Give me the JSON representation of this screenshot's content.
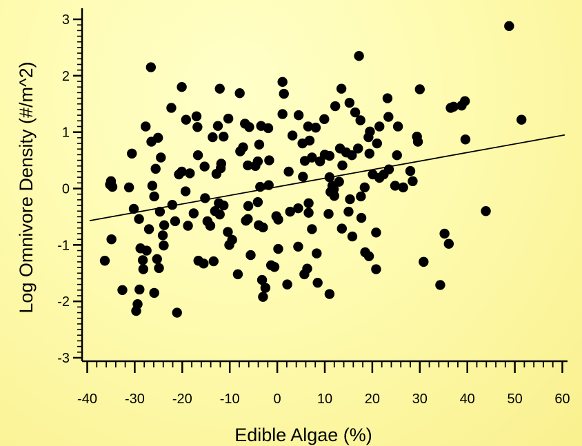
{
  "chart_data": {
    "type": "scatter",
    "title": "",
    "xlabel": "Edible Algae (%)",
    "ylabel": "Log Omnivore Density (#/m^2)",
    "xlim": [
      -41,
      61
    ],
    "ylim": [
      -3.1,
      3.15
    ],
    "x_ticks": [
      -40,
      -30,
      -20,
      -10,
      0,
      10,
      20,
      30,
      40,
      50,
      60
    ],
    "y_ticks": [
      -3,
      -2,
      -1,
      0,
      1,
      2,
      3
    ],
    "x_tick_labels": [
      "-40",
      "-30",
      "-20",
      "-10",
      "0",
      "10",
      "20",
      "30",
      "40",
      "50",
      "60"
    ],
    "y_tick_labels": [
      "-3",
      "-2",
      "-1",
      "0",
      "1",
      "2",
      "3"
    ],
    "grid": false,
    "legend": "none",
    "marker_color": "#000000",
    "line_color": "#000000",
    "trend_line": {
      "x": [
        -39.5,
        60.5
      ],
      "y": [
        -0.57,
        0.95
      ]
    },
    "points": [
      [
        48.8,
        2.88
      ],
      [
        51.4,
        1.22
      ],
      [
        43.9,
        -0.4
      ],
      [
        39.5,
        1.55
      ],
      [
        39.6,
        0.87
      ],
      [
        38.8,
        1.47
      ],
      [
        37.1,
        1.45
      ],
      [
        36.5,
        1.43
      ],
      [
        36.1,
        -0.98
      ],
      [
        35.2,
        -0.8
      ],
      [
        34.3,
        -1.71
      ],
      [
        30.8,
        -1.3
      ],
      [
        30.0,
        1.76
      ],
      [
        29.6,
        0.83
      ],
      [
        29.4,
        0.92
      ],
      [
        28.5,
        0.13
      ],
      [
        28.0,
        0.31
      ],
      [
        26.5,
        0.02
      ],
      [
        25.2,
        0.59
      ],
      [
        24.8,
        0.05
      ],
      [
        25.4,
        1.1
      ],
      [
        23.5,
        0.34
      ],
      [
        23.4,
        1.27
      ],
      [
        23.2,
        1.6
      ],
      [
        22.4,
        0.25
      ],
      [
        21.5,
        0.19
      ],
      [
        21.5,
        1.1
      ],
      [
        21.0,
        0.8
      ],
      [
        20.8,
        -0.78
      ],
      [
        20.8,
        -1.43
      ],
      [
        20.1,
        0.25
      ],
      [
        19.5,
        1.01
      ],
      [
        19.3,
        -1.2
      ],
      [
        19.4,
        0.62
      ],
      [
        19.2,
        0.91
      ],
      [
        18.5,
        -1.13
      ],
      [
        18.4,
        0.02
      ],
      [
        17.7,
        -0.52
      ],
      [
        17.6,
        -0.14
      ],
      [
        17.5,
        1.21
      ],
      [
        17.2,
        2.35
      ],
      [
        17.0,
        0.71
      ],
      [
        16.4,
        1.35
      ],
      [
        15.8,
        -0.85
      ],
      [
        15.7,
        0.59
      ],
      [
        15.3,
        -0.19
      ],
      [
        15.2,
        1.52
      ],
      [
        15.0,
        -0.41
      ],
      [
        14.5,
        0.64
      ],
      [
        13.6,
        -0.71
      ],
      [
        13.7,
        0.41
      ],
      [
        13.5,
        1.77
      ],
      [
        13.2,
        0.71
      ],
      [
        13.0,
        0.12
      ],
      [
        12.2,
        1.46
      ],
      [
        12.0,
        -0.13
      ],
      [
        11.9,
        -0.01
      ],
      [
        11.6,
        0.05
      ],
      [
        11.2,
        -0.06
      ],
      [
        11.0,
        0.2
      ],
      [
        11.0,
        0.58
      ],
      [
        11.0,
        -1.87
      ],
      [
        10.8,
        -0.45
      ],
      [
        10.0,
        0.6
      ],
      [
        9.9,
        1.23
      ],
      [
        9.0,
        0.48
      ],
      [
        8.5,
        -1.67
      ],
      [
        8.3,
        -1.15
      ],
      [
        8.1,
        1.08
      ],
      [
        7.3,
        -0.72
      ],
      [
        7.3,
        0.55
      ],
      [
        6.8,
        0.85
      ],
      [
        6.6,
        -0.43
      ],
      [
        6.6,
        -0.26
      ],
      [
        6.5,
        1.1
      ],
      [
        6.3,
        -1.42
      ],
      [
        5.8,
        0.49
      ],
      [
        5.7,
        -1.52
      ],
      [
        5.4,
        0.21
      ],
      [
        5.3,
        0.8
      ],
      [
        4.5,
        1.3
      ],
      [
        4.4,
        -1.03
      ],
      [
        4.4,
        -0.35
      ],
      [
        3.2,
        0.94
      ],
      [
        2.7,
        -0.41
      ],
      [
        2.4,
        0.3
      ],
      [
        2.1,
        -1.7
      ],
      [
        1.4,
        1.68
      ],
      [
        1.1,
        1.89
      ],
      [
        1.1,
        1.32
      ],
      [
        0.2,
        -1.07
      ],
      [
        0.2,
        -0.55
      ],
      [
        -0.2,
        -0.49
      ],
      [
        -0.6,
        -1.39
      ],
      [
        -1.3,
        -1.36
      ],
      [
        -1.7,
        0.5
      ],
      [
        -1.8,
        0.06
      ],
      [
        -1.9,
        1.07
      ],
      [
        -2.5,
        -1.76
      ],
      [
        -3.0,
        -1.92
      ],
      [
        -3.0,
        -0.69
      ],
      [
        -3.2,
        -1.62
      ],
      [
        -3.4,
        1.11
      ],
      [
        -3.6,
        0.03
      ],
      [
        -3.8,
        0.78
      ],
      [
        -3.9,
        -0.65
      ],
      [
        -4.1,
        0.48
      ],
      [
        -4.1,
        -0.24
      ],
      [
        -4.6,
        0.4
      ],
      [
        -5.6,
        -1.18
      ],
      [
        -5.9,
        1.09
      ],
      [
        -6.1,
        -0.31
      ],
      [
        -6.2,
        -0.54
      ],
      [
        -6.2,
        0.41
      ],
      [
        -6.6,
        -0.57
      ],
      [
        -6.8,
        1.15
      ],
      [
        -7.2,
        0.73
      ],
      [
        -7.8,
        0.66
      ],
      [
        -7.9,
        1.69
      ],
      [
        -8.3,
        -1.52
      ],
      [
        -9.5,
        -0.91
      ],
      [
        -10.1,
        -1.0
      ],
      [
        -10.3,
        1.24
      ],
      [
        -10.4,
        -0.77
      ],
      [
        -11.3,
        0.92
      ],
      [
        -11.3,
        -0.3
      ],
      [
        -11.8,
        0.44
      ],
      [
        -11.9,
        0.36
      ],
      [
        -12.1,
        1.77
      ],
      [
        -12.1,
        -0.46
      ],
      [
        -12.3,
        -0.26
      ],
      [
        -12.5,
        1.11
      ],
      [
        -12.8,
        0.26
      ],
      [
        -13.1,
        -0.4
      ],
      [
        -13.4,
        -1.29
      ],
      [
        -13.6,
        0.91
      ],
      [
        -14.1,
        -0.66
      ],
      [
        -14.7,
        -0.58
      ],
      [
        -15.2,
        -0.17
      ],
      [
        -15.3,
        0.39
      ],
      [
        -15.5,
        -1.33
      ],
      [
        -16.6,
        -1.28
      ],
      [
        -16.7,
        0.59
      ],
      [
        -16.8,
        1.09
      ],
      [
        -17.0,
        1.28
      ],
      [
        -17.6,
        -0.44
      ],
      [
        -18.4,
        0.27
      ],
      [
        -18.8,
        -0.66
      ],
      [
        -19.2,
        1.22
      ],
      [
        -19.3,
        -0.05
      ],
      [
        -20.1,
        0.3
      ],
      [
        -20.1,
        1.8
      ],
      [
        -20.7,
        0.25
      ],
      [
        -21.1,
        -2.2
      ],
      [
        -21.5,
        -0.58
      ],
      [
        -22.1,
        -0.29
      ],
      [
        -22.3,
        1.43
      ],
      [
        -23.8,
        -0.65
      ],
      [
        -23.9,
        -1.01
      ],
      [
        -24.1,
        -0.83
      ],
      [
        -24.5,
        0.55
      ],
      [
        -24.7,
        -0.41
      ],
      [
        -24.9,
        -1.41
      ],
      [
        -25.1,
        0.9
      ],
      [
        -25.3,
        -1.25
      ],
      [
        -25.6,
        0.35
      ],
      [
        -25.9,
        -0.14
      ],
      [
        -25.9,
        -1.85
      ],
      [
        -26.3,
        0.05
      ],
      [
        -26.5,
        0.83
      ],
      [
        -26.6,
        2.15
      ],
      [
        -27.0,
        -0.72
      ],
      [
        -27.5,
        -1.1
      ],
      [
        -27.7,
        1.1
      ],
      [
        -28.3,
        -1.27
      ],
      [
        -28.2,
        -1.43
      ],
      [
        -28.8,
        -1.06
      ],
      [
        -29.0,
        -1.79
      ],
      [
        -29.1,
        -0.54
      ],
      [
        -29.4,
        -2.05
      ],
      [
        -29.7,
        -2.17
      ],
      [
        -30.2,
        -0.36
      ],
      [
        -30.6,
        0.62
      ],
      [
        -31.2,
        0.02
      ],
      [
        -32.6,
        -1.8
      ],
      [
        -34.7,
        0.03
      ],
      [
        -34.9,
        -0.9
      ],
      [
        -35.0,
        0.13
      ],
      [
        -35.2,
        0.07
      ],
      [
        -36.3,
        -1.28
      ]
    ]
  }
}
